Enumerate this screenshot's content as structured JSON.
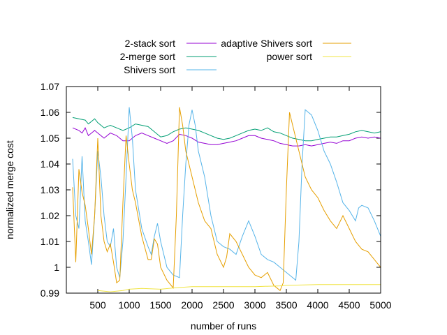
{
  "chart_data": {
    "type": "line",
    "title": "",
    "xlabel": "number of runs",
    "ylabel": "normalized merge cost",
    "xlim": [
      0,
      5000
    ],
    "ylim": [
      0.99,
      1.07
    ],
    "xticks": [
      500,
      1000,
      1500,
      2000,
      2500,
      3000,
      3500,
      4000,
      4500,
      5000
    ],
    "yticks": [
      0.99,
      1,
      1.01,
      1.02,
      1.03,
      1.04,
      1.05,
      1.06,
      1.07
    ],
    "xtick_labels": [
      "500",
      "1000",
      "1500",
      "2000",
      "2500",
      "3000",
      "3500",
      "4000",
      "4500",
      "5000"
    ],
    "ytick_labels": [
      "0.99",
      "1",
      "1.01",
      "1.02",
      "1.03",
      "1.04",
      "1.05",
      "1.06",
      "1.07"
    ],
    "legend_position": "top",
    "series": [
      {
        "name": "2-stack sort",
        "color": "#9400d3",
        "points": [
          [
            100,
            1.054
          ],
          [
            200,
            1.053
          ],
          [
            250,
            1.052
          ],
          [
            300,
            1.054
          ],
          [
            350,
            1.051
          ],
          [
            400,
            1.052
          ],
          [
            450,
            1.053
          ],
          [
            500,
            1.052
          ],
          [
            600,
            1.05
          ],
          [
            650,
            1.051
          ],
          [
            700,
            1.052
          ],
          [
            800,
            1.051
          ],
          [
            900,
            1.049
          ],
          [
            1000,
            1.049
          ],
          [
            1100,
            1.051
          ],
          [
            1200,
            1.052
          ],
          [
            1300,
            1.051
          ],
          [
            1400,
            1.05
          ],
          [
            1500,
            1.049
          ],
          [
            1600,
            1.048
          ],
          [
            1700,
            1.049
          ],
          [
            1800,
            1.0515
          ],
          [
            1900,
            1.051
          ],
          [
            2000,
            1.05
          ],
          [
            2100,
            1.0485
          ],
          [
            2200,
            1.048
          ],
          [
            2300,
            1.0475
          ],
          [
            2400,
            1.0475
          ],
          [
            2500,
            1.048
          ],
          [
            2600,
            1.0485
          ],
          [
            2700,
            1.049
          ],
          [
            2800,
            1.05
          ],
          [
            2900,
            1.051
          ],
          [
            3000,
            1.051
          ],
          [
            3100,
            1.05
          ],
          [
            3200,
            1.0495
          ],
          [
            3300,
            1.049
          ],
          [
            3400,
            1.048
          ],
          [
            3500,
            1.0475
          ],
          [
            3600,
            1.047
          ],
          [
            3700,
            1.047
          ],
          [
            3800,
            1.0475
          ],
          [
            3900,
            1.047
          ],
          [
            4000,
            1.0475
          ],
          [
            4100,
            1.048
          ],
          [
            4200,
            1.0485
          ],
          [
            4300,
            1.048
          ],
          [
            4400,
            1.049
          ],
          [
            4500,
            1.049
          ],
          [
            4600,
            1.05
          ],
          [
            4700,
            1.0505
          ],
          [
            4800,
            1.05
          ],
          [
            4900,
            1.0505
          ],
          [
            5000,
            1.05
          ]
        ]
      },
      {
        "name": "2-merge sort",
        "color": "#009e73",
        "points": [
          [
            100,
            1.058
          ],
          [
            200,
            1.0575
          ],
          [
            300,
            1.057
          ],
          [
            350,
            1.0555
          ],
          [
            400,
            1.0565
          ],
          [
            450,
            1.0575
          ],
          [
            500,
            1.056
          ],
          [
            600,
            1.054
          ],
          [
            700,
            1.055
          ],
          [
            800,
            1.054
          ],
          [
            900,
            1.053
          ],
          [
            1000,
            1.054
          ],
          [
            1100,
            1.0555
          ],
          [
            1200,
            1.055
          ],
          [
            1300,
            1.0545
          ],
          [
            1400,
            1.0525
          ],
          [
            1500,
            1.0505
          ],
          [
            1600,
            1.051
          ],
          [
            1700,
            1.0525
          ],
          [
            1800,
            1.0535
          ],
          [
            1900,
            1.054
          ],
          [
            2000,
            1.0535
          ],
          [
            2100,
            1.053
          ],
          [
            2200,
            1.052
          ],
          [
            2300,
            1.051
          ],
          [
            2400,
            1.05
          ],
          [
            2500,
            1.0495
          ],
          [
            2600,
            1.05
          ],
          [
            2700,
            1.051
          ],
          [
            2800,
            1.052
          ],
          [
            2900,
            1.053
          ],
          [
            3000,
            1.0535
          ],
          [
            3100,
            1.053
          ],
          [
            3200,
            1.054
          ],
          [
            3300,
            1.0525
          ],
          [
            3400,
            1.052
          ],
          [
            3500,
            1.051
          ],
          [
            3600,
            1.05
          ],
          [
            3700,
            1.0495
          ],
          [
            3800,
            1.049
          ],
          [
            3900,
            1.049
          ],
          [
            4000,
            1.0495
          ],
          [
            4100,
            1.05
          ],
          [
            4200,
            1.0505
          ],
          [
            4300,
            1.0505
          ],
          [
            4400,
            1.051
          ],
          [
            4500,
            1.0515
          ],
          [
            4600,
            1.0525
          ],
          [
            4700,
            1.053
          ],
          [
            4800,
            1.0525
          ],
          [
            4900,
            1.052
          ],
          [
            5000,
            1.0525
          ]
        ]
      },
      {
        "name": "Shivers sort",
        "color": "#56b4e9",
        "points": [
          [
            100,
            1.042
          ],
          [
            150,
            1.02
          ],
          [
            200,
            1.015
          ],
          [
            250,
            1.043
          ],
          [
            300,
            1.018
          ],
          [
            350,
            1.01
          ],
          [
            400,
            1.001
          ],
          [
            450,
            1.02
          ],
          [
            500,
            1.045
          ],
          [
            550,
            1.035
          ],
          [
            600,
            1.02
          ],
          [
            650,
            1.01
          ],
          [
            700,
            1.008
          ],
          [
            750,
            1.015
          ],
          [
            800,
            1.0
          ],
          [
            850,
            0.996
          ],
          [
            900,
            1.01
          ],
          [
            950,
            1.035
          ],
          [
            1000,
            1.062
          ],
          [
            1050,
            1.05
          ],
          [
            1100,
            1.03
          ],
          [
            1200,
            1.015
          ],
          [
            1300,
            1.008
          ],
          [
            1350,
            1.005
          ],
          [
            1400,
            1.012
          ],
          [
            1450,
            1.017
          ],
          [
            1500,
            1.01
          ],
          [
            1600,
            1.0
          ],
          [
            1700,
            0.997
          ],
          [
            1800,
            0.996
          ],
          [
            1850,
            1.02
          ],
          [
            1900,
            1.04
          ],
          [
            1950,
            1.055
          ],
          [
            2000,
            1.061
          ],
          [
            2050,
            1.055
          ],
          [
            2100,
            1.045
          ],
          [
            2200,
            1.035
          ],
          [
            2300,
            1.02
          ],
          [
            2400,
            1.01
          ],
          [
            2500,
            1.008
          ],
          [
            2600,
            1.007
          ],
          [
            2700,
            1.005
          ],
          [
            2800,
            1.012
          ],
          [
            2900,
            1.018
          ],
          [
            3000,
            1.012
          ],
          [
            3100,
            1.005
          ],
          [
            3200,
            1.003
          ],
          [
            3300,
            1.002
          ],
          [
            3400,
            1.0
          ],
          [
            3500,
            0.998
          ],
          [
            3600,
            0.996
          ],
          [
            3650,
            0.995
          ],
          [
            3700,
            1.01
          ],
          [
            3750,
            1.04
          ],
          [
            3800,
            1.061
          ],
          [
            3900,
            1.059
          ],
          [
            4000,
            1.053
          ],
          [
            4100,
            1.045
          ],
          [
            4200,
            1.04
          ],
          [
            4300,
            1.033
          ],
          [
            4400,
            1.025
          ],
          [
            4500,
            1.022
          ],
          [
            4600,
            1.018
          ],
          [
            4650,
            1.023
          ],
          [
            4700,
            1.024
          ],
          [
            4800,
            1.023
          ],
          [
            4900,
            1.018
          ],
          [
            5000,
            1.012
          ]
        ]
      },
      {
        "name": "adaptive Shivers sort",
        "color": "#e69f00",
        "points": [
          [
            100,
            1.031
          ],
          [
            150,
            1.002
          ],
          [
            200,
            1.038
          ],
          [
            250,
            1.029
          ],
          [
            300,
            1.024
          ],
          [
            350,
            1.015
          ],
          [
            400,
            1.005
          ],
          [
            450,
            1.02
          ],
          [
            500,
            1.05
          ],
          [
            550,
            1.02
          ],
          [
            600,
            1.01
          ],
          [
            650,
            1.006
          ],
          [
            700,
            1.009
          ],
          [
            750,
            1.002
          ],
          [
            800,
            0.994
          ],
          [
            850,
            0.995
          ],
          [
            900,
            1.025
          ],
          [
            950,
            1.051
          ],
          [
            1000,
            1.04
          ],
          [
            1050,
            1.03
          ],
          [
            1100,
            1.025
          ],
          [
            1200,
            1.012
          ],
          [
            1300,
            1.003
          ],
          [
            1350,
            1.003
          ],
          [
            1400,
            1.011
          ],
          [
            1450,
            1.009
          ],
          [
            1500,
            1.0
          ],
          [
            1600,
            0.995
          ],
          [
            1700,
            0.992
          ],
          [
            1750,
            1.02
          ],
          [
            1800,
            1.062
          ],
          [
            1850,
            1.055
          ],
          [
            1900,
            1.045
          ],
          [
            2000,
            1.035
          ],
          [
            2100,
            1.025
          ],
          [
            2200,
            1.018
          ],
          [
            2300,
            1.015
          ],
          [
            2400,
            1.005
          ],
          [
            2500,
            1.0
          ],
          [
            2550,
            1.004
          ],
          [
            2600,
            1.013
          ],
          [
            2700,
            1.01
          ],
          [
            2800,
            1.005
          ],
          [
            2900,
            1.0
          ],
          [
            3000,
            0.997
          ],
          [
            3100,
            0.996
          ],
          [
            3200,
            0.998
          ],
          [
            3300,
            0.993
          ],
          [
            3400,
            0.991
          ],
          [
            3450,
            0.994
          ],
          [
            3500,
            1.03
          ],
          [
            3550,
            1.06
          ],
          [
            3600,
            1.055
          ],
          [
            3700,
            1.045
          ],
          [
            3800,
            1.035
          ],
          [
            3900,
            1.03
          ],
          [
            4000,
            1.027
          ],
          [
            4100,
            1.022
          ],
          [
            4200,
            1.018
          ],
          [
            4300,
            1.015
          ],
          [
            4400,
            1.02
          ],
          [
            4500,
            1.015
          ],
          [
            4600,
            1.01
          ],
          [
            4700,
            1.007
          ],
          [
            4800,
            1.006
          ],
          [
            4900,
            1.003
          ],
          [
            5000,
            1.0
          ]
        ]
      },
      {
        "name": "power sort",
        "color": "#f0e442",
        "points": [
          [
            500,
            0.991
          ],
          [
            700,
            0.9905
          ],
          [
            900,
            0.991
          ],
          [
            1000,
            0.9915
          ],
          [
            1200,
            0.9918
          ],
          [
            1500,
            0.9915
          ],
          [
            1700,
            0.992
          ],
          [
            2000,
            0.9925
          ],
          [
            2500,
            0.9925
          ],
          [
            3000,
            0.9925
          ],
          [
            3400,
            0.9928
          ],
          [
            3500,
            0.993
          ],
          [
            4000,
            0.9933
          ],
          [
            4500,
            0.9933
          ],
          [
            5000,
            0.9933
          ]
        ]
      }
    ]
  }
}
